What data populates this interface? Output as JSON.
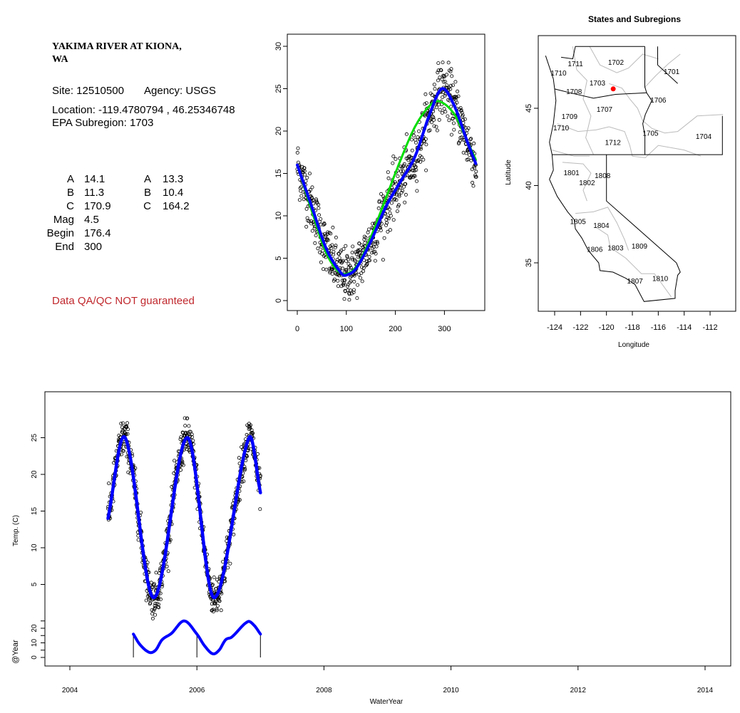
{
  "info_panel": {
    "title_line1": "YAKIMA RIVER AT KIONA,",
    "title_line2": "WA",
    "site": "Site: 12510500",
    "agency": "Agency: USGS",
    "location": "Location: -119.4780794 , 46.25346748",
    "subregion": "EPA Subregion: 1703",
    "params_left": [
      {
        "label": "A",
        "value": "14.1"
      },
      {
        "label": "B",
        "value": "11.3"
      },
      {
        "label": "C",
        "value": "170.9"
      },
      {
        "label": "Mag",
        "value": "4.5"
      },
      {
        "label": "Begin",
        "value": "176.4"
      },
      {
        "label": "End",
        "value": "300"
      }
    ],
    "params_right": [
      {
        "label": "A",
        "value": "13.3"
      },
      {
        "label": "B",
        "value": "10.4"
      },
      {
        "label": "C",
        "value": "164.2"
      }
    ],
    "disclaimer": "Data QA/QC NOT guaranteed",
    "disclaimer_color": "#c0282d"
  },
  "chart_data": [
    {
      "id": "doy_plot",
      "type": "scatter",
      "title": "",
      "xlabel": "",
      "ylabel": "",
      "xlim": [
        -5,
        380
      ],
      "ylim": [
        -1,
        31
      ],
      "xticks": [
        0,
        100,
        200,
        300
      ],
      "yticks": [
        0,
        5,
        10,
        15,
        20,
        25,
        30
      ],
      "scatter_noise_sd": 1.6,
      "series": [
        {
          "name": "fit-blue",
          "color": "#0000ff",
          "points": [
            [
              0,
              16
            ],
            [
              30,
              11
            ],
            [
              60,
              6
            ],
            [
              90,
              3.2
            ],
            [
              100,
              3
            ],
            [
              120,
              3.8
            ],
            [
              150,
              7
            ],
            [
              180,
              11
            ],
            [
              210,
              14
            ],
            [
              240,
              17
            ],
            [
              270,
              22
            ],
            [
              295,
              25
            ],
            [
              320,
              23
            ],
            [
              345,
              19
            ],
            [
              365,
              16
            ]
          ]
        },
        {
          "name": "fit-green",
          "color": "#00dd00",
          "points": [
            [
              0,
              16
            ],
            [
              30,
              10.5
            ],
            [
              60,
              5.5
            ],
            [
              90,
              3.2
            ],
            [
              120,
              4
            ],
            [
              150,
              7.5
            ],
            [
              180,
              12
            ],
            [
              210,
              16.5
            ],
            [
              240,
              20.5
            ],
            [
              270,
              23
            ],
            [
              290,
              23.5
            ],
            [
              320,
              22
            ],
            [
              345,
              19
            ],
            [
              365,
              16.5
            ]
          ]
        }
      ]
    },
    {
      "id": "map",
      "type": "map",
      "title": "States and Subregions",
      "xlabel": "Longitude",
      "ylabel": "Latitude",
      "xticks": [
        -124,
        -122,
        -120,
        -118,
        -116,
        -114,
        -112
      ],
      "yticks": [
        35,
        40,
        45
      ],
      "site": {
        "lon": -119.4780794,
        "lat": 46.25346748,
        "color": "#ff0000"
      },
      "subregions": [
        {
          "label": "1702",
          "lon": -119.27,
          "lat": 48.0
        },
        {
          "label": "1701",
          "lon": -114.97,
          "lat": 47.4
        },
        {
          "label": "1711",
          "lon": -122.4,
          "lat": 47.9
        },
        {
          "label": "1710",
          "lon": -123.7,
          "lat": 47.3
        },
        {
          "label": "1703",
          "lon": -120.7,
          "lat": 46.66
        },
        {
          "label": "1708",
          "lon": -122.5,
          "lat": 46.1
        },
        {
          "label": "1706",
          "lon": -116.0,
          "lat": 45.55
        },
        {
          "label": "1707",
          "lon": -120.15,
          "lat": 44.95
        },
        {
          "label": "1709",
          "lon": -122.85,
          "lat": 44.5
        },
        {
          "label": "1710",
          "lon": -123.5,
          "lat": 43.76
        },
        {
          "label": "1705",
          "lon": -116.6,
          "lat": 43.4
        },
        {
          "label": "1704",
          "lon": -112.5,
          "lat": 43.2
        },
        {
          "label": "1712",
          "lon": -119.5,
          "lat": 42.8
        },
        {
          "label": "1801",
          "lon": -122.7,
          "lat": 40.85
        },
        {
          "label": "1808",
          "lon": -120.3,
          "lat": 40.67
        },
        {
          "label": "1802",
          "lon": -121.5,
          "lat": 40.2
        },
        {
          "label": "1805",
          "lon": -122.2,
          "lat": 37.7
        },
        {
          "label": "1804",
          "lon": -120.4,
          "lat": 37.45
        },
        {
          "label": "1809",
          "lon": -117.45,
          "lat": 36.1
        },
        {
          "label": "1803",
          "lon": -119.3,
          "lat": 36.0
        },
        {
          "label": "1806",
          "lon": -120.9,
          "lat": 35.9
        },
        {
          "label": "1810",
          "lon": -115.85,
          "lat": 34.0
        },
        {
          "label": "1807",
          "lon": -117.8,
          "lat": 33.85
        }
      ]
    },
    {
      "id": "timeseries",
      "type": "scatter",
      "xlabel": "WaterYear",
      "ylabel": "Temp. (C)",
      "ylabel2": "@Year",
      "xticks": [
        2004,
        2006,
        2008,
        2010,
        2012,
        2014
      ],
      "yticks": [
        5,
        10,
        15,
        20,
        25
      ],
      "yticks2": [
        0,
        5,
        10,
        15,
        20,
        25
      ],
      "yticklabels2": [
        "0",
        "",
        "10",
        "",
        "20",
        ""
      ],
      "scatter_range": [
        2004.6,
        2007.0
      ],
      "scatter_noise_sd": 1.3,
      "temp_fit": {
        "color": "#0000ff",
        "points": [
          [
            2004.6,
            14
          ],
          [
            2004.87,
            25
          ],
          [
            2005.32,
            3.2
          ],
          [
            2005.85,
            25
          ],
          [
            2006.27,
            3.2
          ],
          [
            2006.82,
            25
          ],
          [
            2007.0,
            17.5
          ]
        ]
      },
      "year_fit": {
        "color": "#0000ff",
        "points": [
          [
            2005.0,
            16
          ],
          [
            2005.1,
            9
          ],
          [
            2005.25,
            3.5
          ],
          [
            2005.35,
            5
          ],
          [
            2005.45,
            12
          ],
          [
            2005.6,
            16.5
          ],
          [
            2005.8,
            25
          ],
          [
            2006.0,
            16
          ],
          [
            2006.12,
            8
          ],
          [
            2006.25,
            2.5
          ],
          [
            2006.35,
            5
          ],
          [
            2006.45,
            12
          ],
          [
            2006.55,
            14
          ],
          [
            2006.8,
            24.5
          ],
          [
            2006.9,
            22
          ],
          [
            2007.0,
            16
          ]
        ]
      },
      "year_markers": [
        2005,
        2006,
        2007
      ]
    }
  ]
}
